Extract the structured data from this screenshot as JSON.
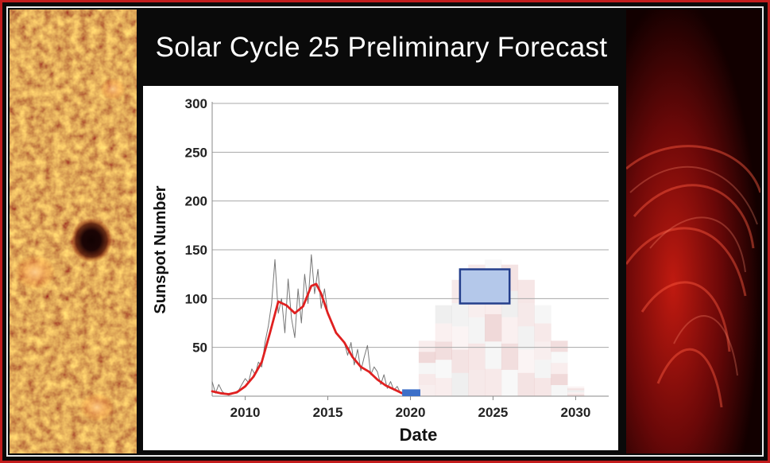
{
  "page_title": "Solar Cycle 25 Preliminary Forecast",
  "colors": {
    "frame": "#c21d1d",
    "smoothed": "#e02020",
    "monthly": "#777777",
    "forecast_box_fill": "#b4c8ea",
    "forecast_box_stroke": "#243f8c",
    "current_marker": "#3c6fc8",
    "grid": "#a8a8a8"
  },
  "chart_data": {
    "type": "line",
    "title": "Solar Cycle 25 Preliminary Forecast",
    "xlabel": "Date",
    "ylabel": "Sunspot Number",
    "xlim": [
      2008,
      2032
    ],
    "ylim": [
      0,
      300
    ],
    "x_ticks": [
      2010,
      2015,
      2020,
      2025,
      2030
    ],
    "y_ticks": [
      50,
      100,
      150,
      200,
      250,
      300
    ],
    "grid": true,
    "series": [
      {
        "name": "Monthly sunspot number",
        "style": "thin gray line",
        "x": [
          2008.0,
          2008.2,
          2008.4,
          2008.6,
          2008.8,
          2009.0,
          2009.2,
          2009.4,
          2009.6,
          2009.8,
          2010.0,
          2010.2,
          2010.4,
          2010.6,
          2010.8,
          2011.0,
          2011.2,
          2011.4,
          2011.6,
          2011.8,
          2012.0,
          2012.2,
          2012.4,
          2012.6,
          2012.8,
          2013.0,
          2013.2,
          2013.4,
          2013.6,
          2013.8,
          2014.0,
          2014.2,
          2014.4,
          2014.6,
          2014.8,
          2015.0,
          2015.2,
          2015.4,
          2015.6,
          2015.8,
          2016.0,
          2016.2,
          2016.4,
          2016.6,
          2016.8,
          2017.0,
          2017.2,
          2017.4,
          2017.6,
          2017.8,
          2018.0,
          2018.2,
          2018.4,
          2018.6,
          2018.8,
          2019.0,
          2019.2,
          2019.4,
          2019.6,
          2019.8
        ],
        "y": [
          15,
          3,
          12,
          5,
          2,
          1,
          2,
          4,
          6,
          12,
          18,
          14,
          28,
          22,
          35,
          30,
          55,
          72,
          95,
          140,
          85,
          100,
          65,
          120,
          80,
          60,
          110,
          75,
          125,
          95,
          145,
          105,
          130,
          90,
          110,
          85,
          75,
          70,
          62,
          60,
          55,
          42,
          55,
          32,
          48,
          26,
          40,
          52,
          22,
          30,
          25,
          12,
          22,
          8,
          15,
          6,
          10,
          3,
          2,
          1
        ]
      },
      {
        "name": "Smoothed sunspot number (Cycle 24)",
        "style": "thick red line",
        "x": [
          2008.0,
          2008.5,
          2009.0,
          2009.5,
          2010.0,
          2010.5,
          2011.0,
          2011.5,
          2012.0,
          2012.5,
          2013.0,
          2013.5,
          2014.0,
          2014.3,
          2014.6,
          2015.0,
          2015.5,
          2016.0,
          2016.5,
          2017.0,
          2017.5,
          2018.0,
          2018.5,
          2019.0,
          2019.5
        ],
        "y": [
          5,
          3,
          2,
          4,
          10,
          20,
          35,
          65,
          97,
          93,
          85,
          92,
          113,
          115,
          105,
          85,
          65,
          55,
          40,
          30,
          25,
          17,
          11,
          7,
          3
        ]
      }
    ],
    "annotations": [
      {
        "name": "Predicted Cycle 25 maximum",
        "shape": "rectangle",
        "x_range": [
          2023,
          2026
        ],
        "y_range": [
          95,
          130
        ]
      },
      {
        "name": "Predicted Cycle 24/25 minimum",
        "shape": "rectangle",
        "x_range": [
          2019.5,
          2020.6
        ],
        "y_range": [
          0,
          7
        ]
      }
    ],
    "probability_cloud": {
      "description": "faint pink/gray probability shading of possible Cycle 25 paths",
      "x_range": [
        2020.5,
        2030.5
      ],
      "y_range": [
        0,
        140
      ]
    }
  }
}
